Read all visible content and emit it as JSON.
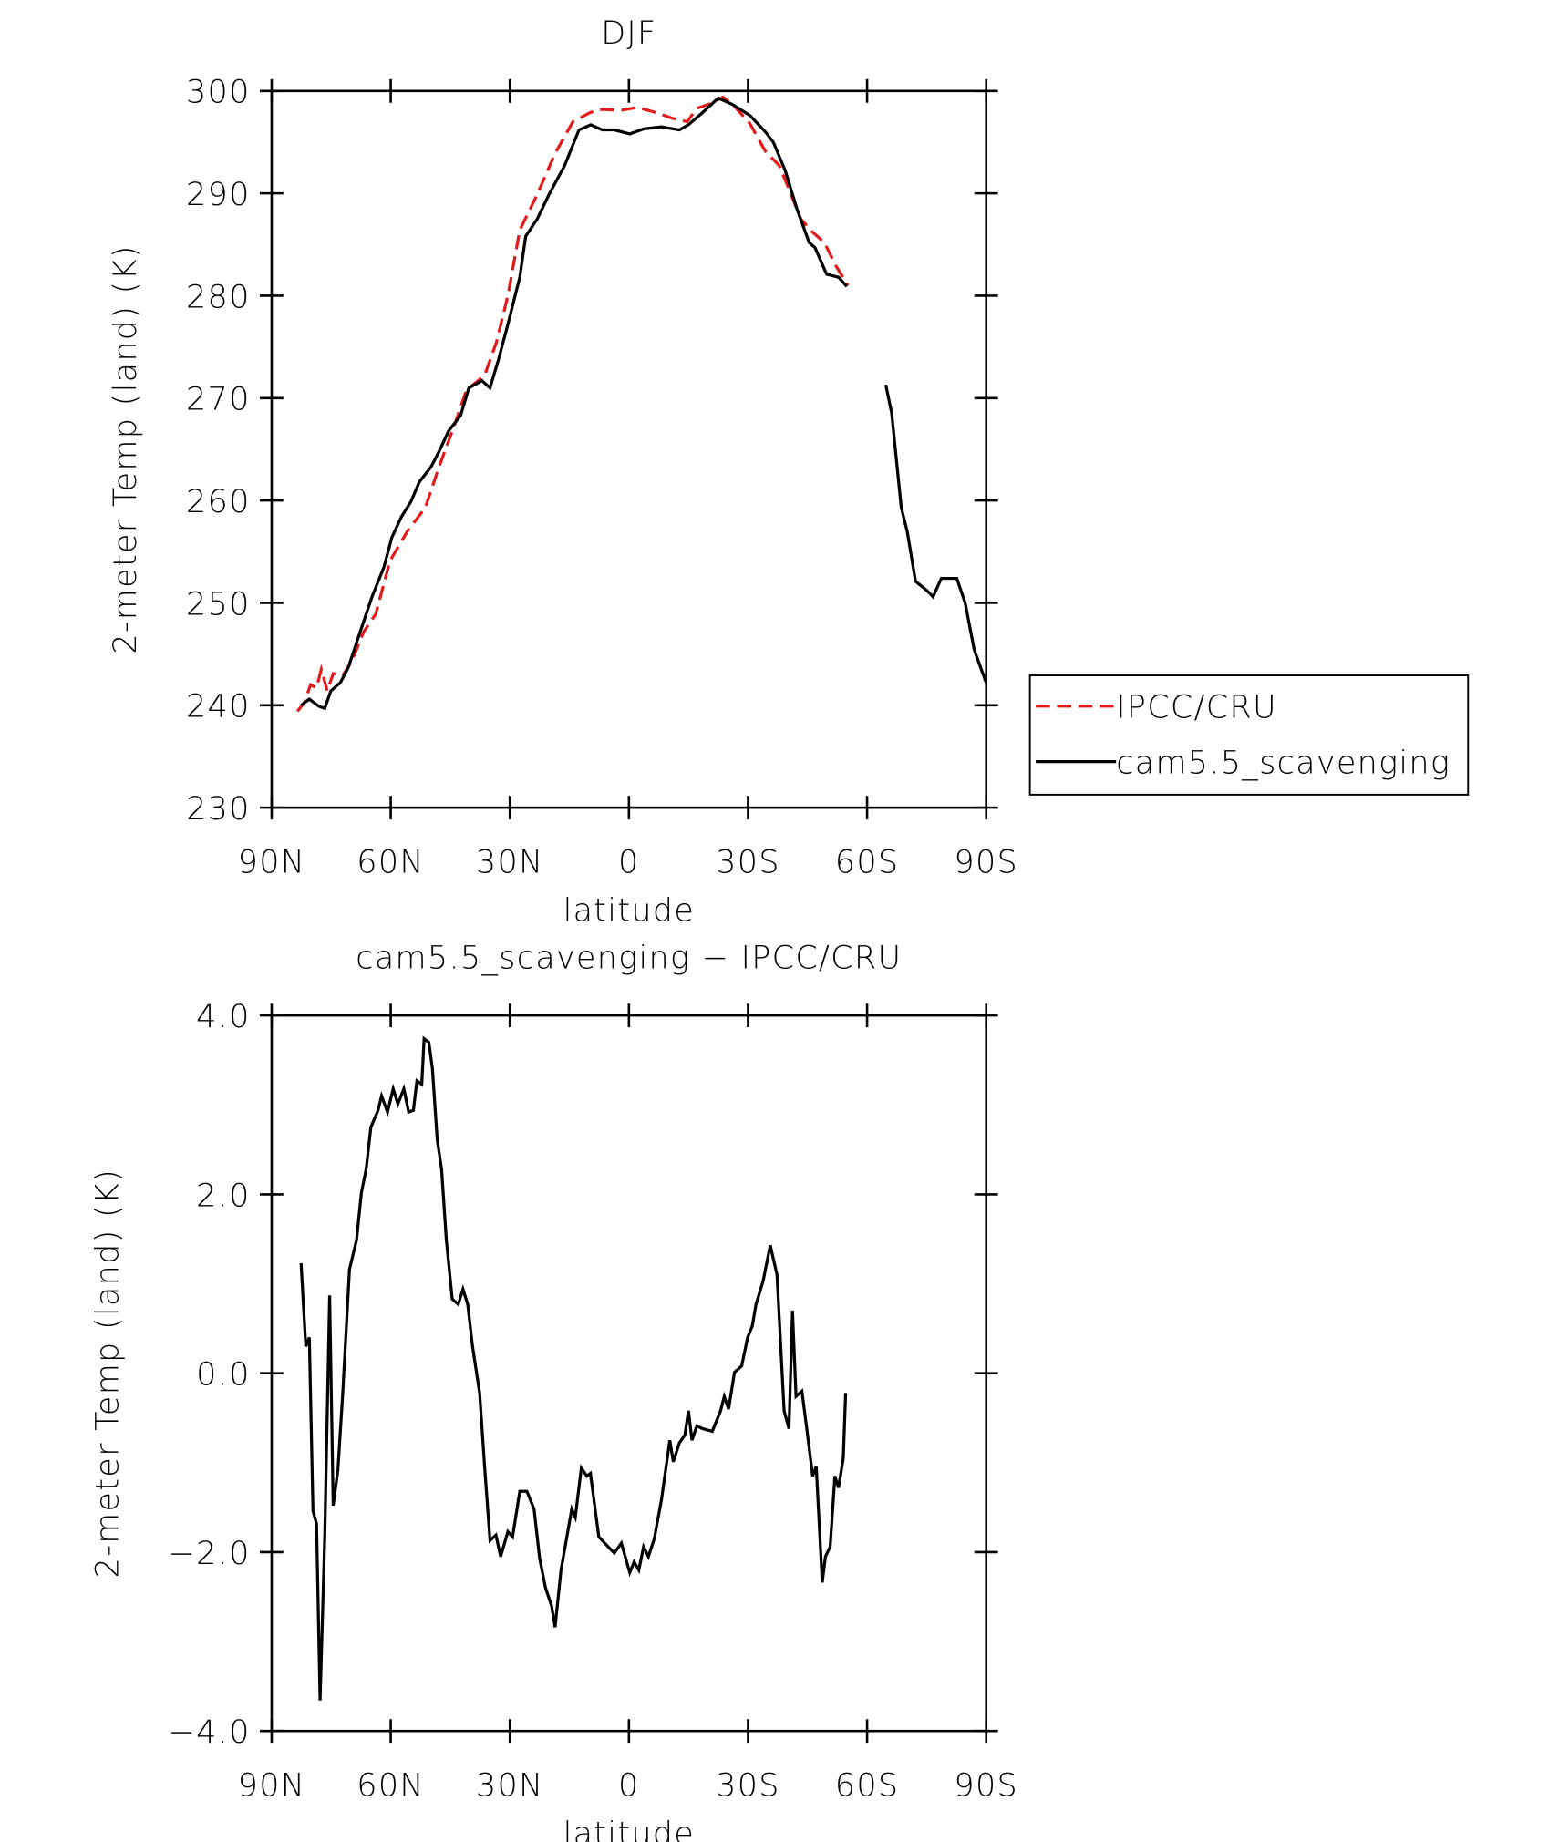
{
  "chart_data": [
    {
      "type": "line",
      "title": "DJF",
      "xlabel": "latitude",
      "ylabel": "2-meter Temp (land) (K)",
      "xlim": [
        90,
        -90
      ],
      "xticks": [
        {
          "value": 90,
          "label": "90N"
        },
        {
          "value": 60,
          "label": "60N"
        },
        {
          "value": 30,
          "label": "30N"
        },
        0,
        {
          "value": -30,
          "label": "30S"
        },
        {
          "value": -60,
          "label": "60S"
        },
        {
          "value": -90,
          "label": "90S"
        }
      ],
      "ylim": [
        230,
        300
      ],
      "yticks": [
        230,
        240,
        250,
        260,
        270,
        280,
        290,
        300
      ],
      "legend": "right",
      "series": [
        {
          "name": "IPCC/CRU",
          "color": "#e31a1c",
          "dash": true,
          "x": [
            83.5,
            81.7,
            80.2,
            78.7,
            77.5,
            76.0,
            74.5,
            72.1,
            69.8,
            66.8,
            63.8,
            60.2,
            55.8,
            51.3,
            47.8,
            43.9,
            40.9,
            36.4,
            33.4,
            30.5,
            27.5,
            23.1,
            18.6,
            14.1,
            9.7,
            6.7,
            2.2,
            -2.2,
            -6.7,
            -11.2,
            -14.7,
            -17.1,
            -20.1,
            -23.7,
            -26.6,
            -30.5,
            -34.4,
            -37.9,
            -40.3,
            -43.3,
            -46.3,
            -49.2,
            -52.2,
            -55.2
          ],
          "values": [
            239.4,
            240.3,
            242.0,
            241.7,
            243.5,
            241.4,
            243.1,
            242.9,
            244.3,
            247.2,
            248.9,
            254.1,
            257.0,
            259.3,
            263.3,
            267.4,
            270.8,
            272.2,
            275.4,
            280.0,
            286.4,
            289.9,
            293.9,
            297.0,
            297.9,
            298.2,
            298.1,
            298.4,
            297.9,
            297.3,
            297.0,
            298.3,
            298.7,
            299.4,
            298.5,
            296.8,
            294.1,
            292.7,
            290.4,
            287.5,
            286.2,
            285.2,
            282.9,
            281.0
          ]
        },
        {
          "name": "cam5.5_scavenging",
          "color": "#000000",
          "dash": false,
          "x": [
            82.6,
            80.5,
            78.1,
            76.6,
            75.1,
            72.7,
            70.7,
            67.7,
            64.7,
            61.7,
            59.7,
            57.3,
            54.9,
            52.8,
            49.8,
            47.8,
            45.4,
            42.4,
            40.3,
            37.0,
            35.0,
            32.9,
            30.5,
            27.5,
            26.0,
            23.1,
            20.1,
            16.2,
            12.6,
            9.6,
            6.7,
            3.7,
            -0.2,
            -3.8,
            -8.2,
            -12.7,
            -15.0,
            -18.6,
            -22.5,
            -26.0,
            -30.5,
            -34.4,
            -36.4,
            -39.4,
            -42.4,
            -45.4,
            -46.9,
            -49.8,
            -52.8,
            -54.9,
            -60,
            -64.7,
            -66.2,
            -68.6,
            -70.1,
            -72.2,
            -75.1,
            -76.6,
            -78.7,
            -82.6,
            -84.7,
            -87.0,
            -90
          ],
          "values": [
            240.0,
            240.6,
            239.9,
            239.7,
            241.4,
            242.2,
            243.7,
            247.2,
            250.6,
            253.5,
            256.4,
            258.4,
            259.9,
            261.8,
            263.3,
            264.8,
            266.8,
            268.3,
            271.0,
            271.7,
            271.0,
            273.7,
            277.2,
            281.8,
            285.8,
            287.5,
            289.9,
            292.7,
            296.2,
            296.7,
            296.2,
            296.2,
            295.8,
            296.3,
            296.5,
            296.2,
            296.7,
            297.9,
            299.3,
            298.7,
            297.6,
            296.0,
            295.0,
            292.2,
            288.4,
            285.2,
            284.7,
            282.1,
            281.8,
            280.9,
            null,
            271.3,
            268.5,
            259.3,
            257.0,
            252.1,
            251.2,
            250.6,
            252.4,
            252.4,
            250.0,
            245.4,
            242.2
          ]
        }
      ]
    },
    {
      "type": "line",
      "title": "cam5.5_scavenging − IPCC/CRU",
      "xlabel": "latitude",
      "ylabel": "2-meter Temp (land) (K)",
      "xlim": [
        90,
        -90
      ],
      "xticks": [
        {
          "value": 90,
          "label": "90N"
        },
        {
          "value": 60,
          "label": "60N"
        },
        {
          "value": 30,
          "label": "30N"
        },
        0,
        {
          "value": -30,
          "label": "30S"
        },
        {
          "value": -60,
          "label": "60S"
        },
        {
          "value": -90,
          "label": "90S"
        }
      ],
      "ylim": [
        -4,
        4
      ],
      "yticks": [
        {
          "value": -4,
          "label": "−4.0"
        },
        {
          "value": -2,
          "label": "−2.0"
        },
        {
          "value": 0,
          "label": "0.0"
        },
        {
          "value": 2,
          "label": "2.0"
        },
        {
          "value": 4,
          "label": "4.0"
        }
      ],
      "series": [
        {
          "color": "#000000",
          "dash": false,
          "x": [
            82.6,
            81.4,
            80.5,
            79.6,
            78.7,
            77.8,
            76.6,
            75.4,
            74.5,
            73.3,
            72.1,
            70.4,
            68.6,
            67.4,
            66.2,
            65.0,
            63.2,
            62.3,
            60.8,
            59.4,
            58.2,
            56.7,
            55.5,
            54.3,
            53.4,
            52.2,
            51.6,
            50.4,
            49.5,
            48.3,
            47.2,
            46.0,
            44.5,
            43.0,
            41.8,
            40.6,
            39.4,
            37.6,
            36.4,
            35.0,
            33.5,
            32.3,
            30.5,
            29.3,
            27.5,
            25.7,
            23.9,
            22.5,
            21.0,
            19.5,
            18.6,
            17.1,
            14.4,
            13.5,
            12.0,
            10.6,
            9.7,
            7.6,
            6.1,
            3.7,
            1.9,
            -0.2,
            -1.3,
            -2.5,
            -3.7,
            -4.9,
            -6.4,
            -8.2,
            -10.3,
            -11.2,
            -12.7,
            -14.1,
            -15.0,
            -15.9,
            -17.1,
            -18.6,
            -21.0,
            -23.1,
            -24.0,
            -25.1,
            -26.6,
            -28.4,
            -29.9,
            -31.1,
            -32.0,
            -33.8,
            -35.6,
            -37.3,
            -39.1,
            -40.3,
            -41.2,
            -42.1,
            -43.6,
            -44.8,
            -46.3,
            -47.2,
            -48.7,
            -49.5,
            -50.7,
            -51.9,
            -52.8,
            -54.0,
            -54.6
          ],
          "values": [
            1.23,
            0.3,
            0.4,
            -1.54,
            -1.68,
            -3.66,
            -1.81,
            0.87,
            -1.48,
            -1.08,
            -0.22,
            1.16,
            1.49,
            2.02,
            2.28,
            2.75,
            2.94,
            3.1,
            2.92,
            3.18,
            3.01,
            3.18,
            2.92,
            2.94,
            3.27,
            3.23,
            3.74,
            3.7,
            3.41,
            2.61,
            2.28,
            1.49,
            0.83,
            0.77,
            0.94,
            0.77,
            0.3,
            -0.22,
            -1.02,
            -1.87,
            -1.81,
            -2.05,
            -1.77,
            -1.83,
            -1.32,
            -1.32,
            -1.52,
            -2.07,
            -2.4,
            -2.6,
            -2.84,
            -2.2,
            -1.52,
            -1.61,
            -1.06,
            -1.15,
            -1.12,
            -1.83,
            -1.9,
            -2.01,
            -1.9,
            -2.23,
            -2.11,
            -2.2,
            -1.94,
            -2.05,
            -1.85,
            -1.41,
            -0.75,
            -0.99,
            -0.78,
            -0.69,
            -0.42,
            -0.75,
            -0.59,
            -0.62,
            -0.65,
            -0.42,
            -0.26,
            -0.4,
            0.01,
            0.08,
            0.4,
            0.53,
            0.77,
            1.03,
            1.43,
            1.1,
            -0.42,
            -0.62,
            0.7,
            -0.26,
            -0.2,
            -0.62,
            -1.15,
            -1.04,
            -2.34,
            -2.05,
            -1.94,
            -1.15,
            -1.28,
            -0.95,
            -0.22
          ]
        }
      ]
    }
  ]
}
